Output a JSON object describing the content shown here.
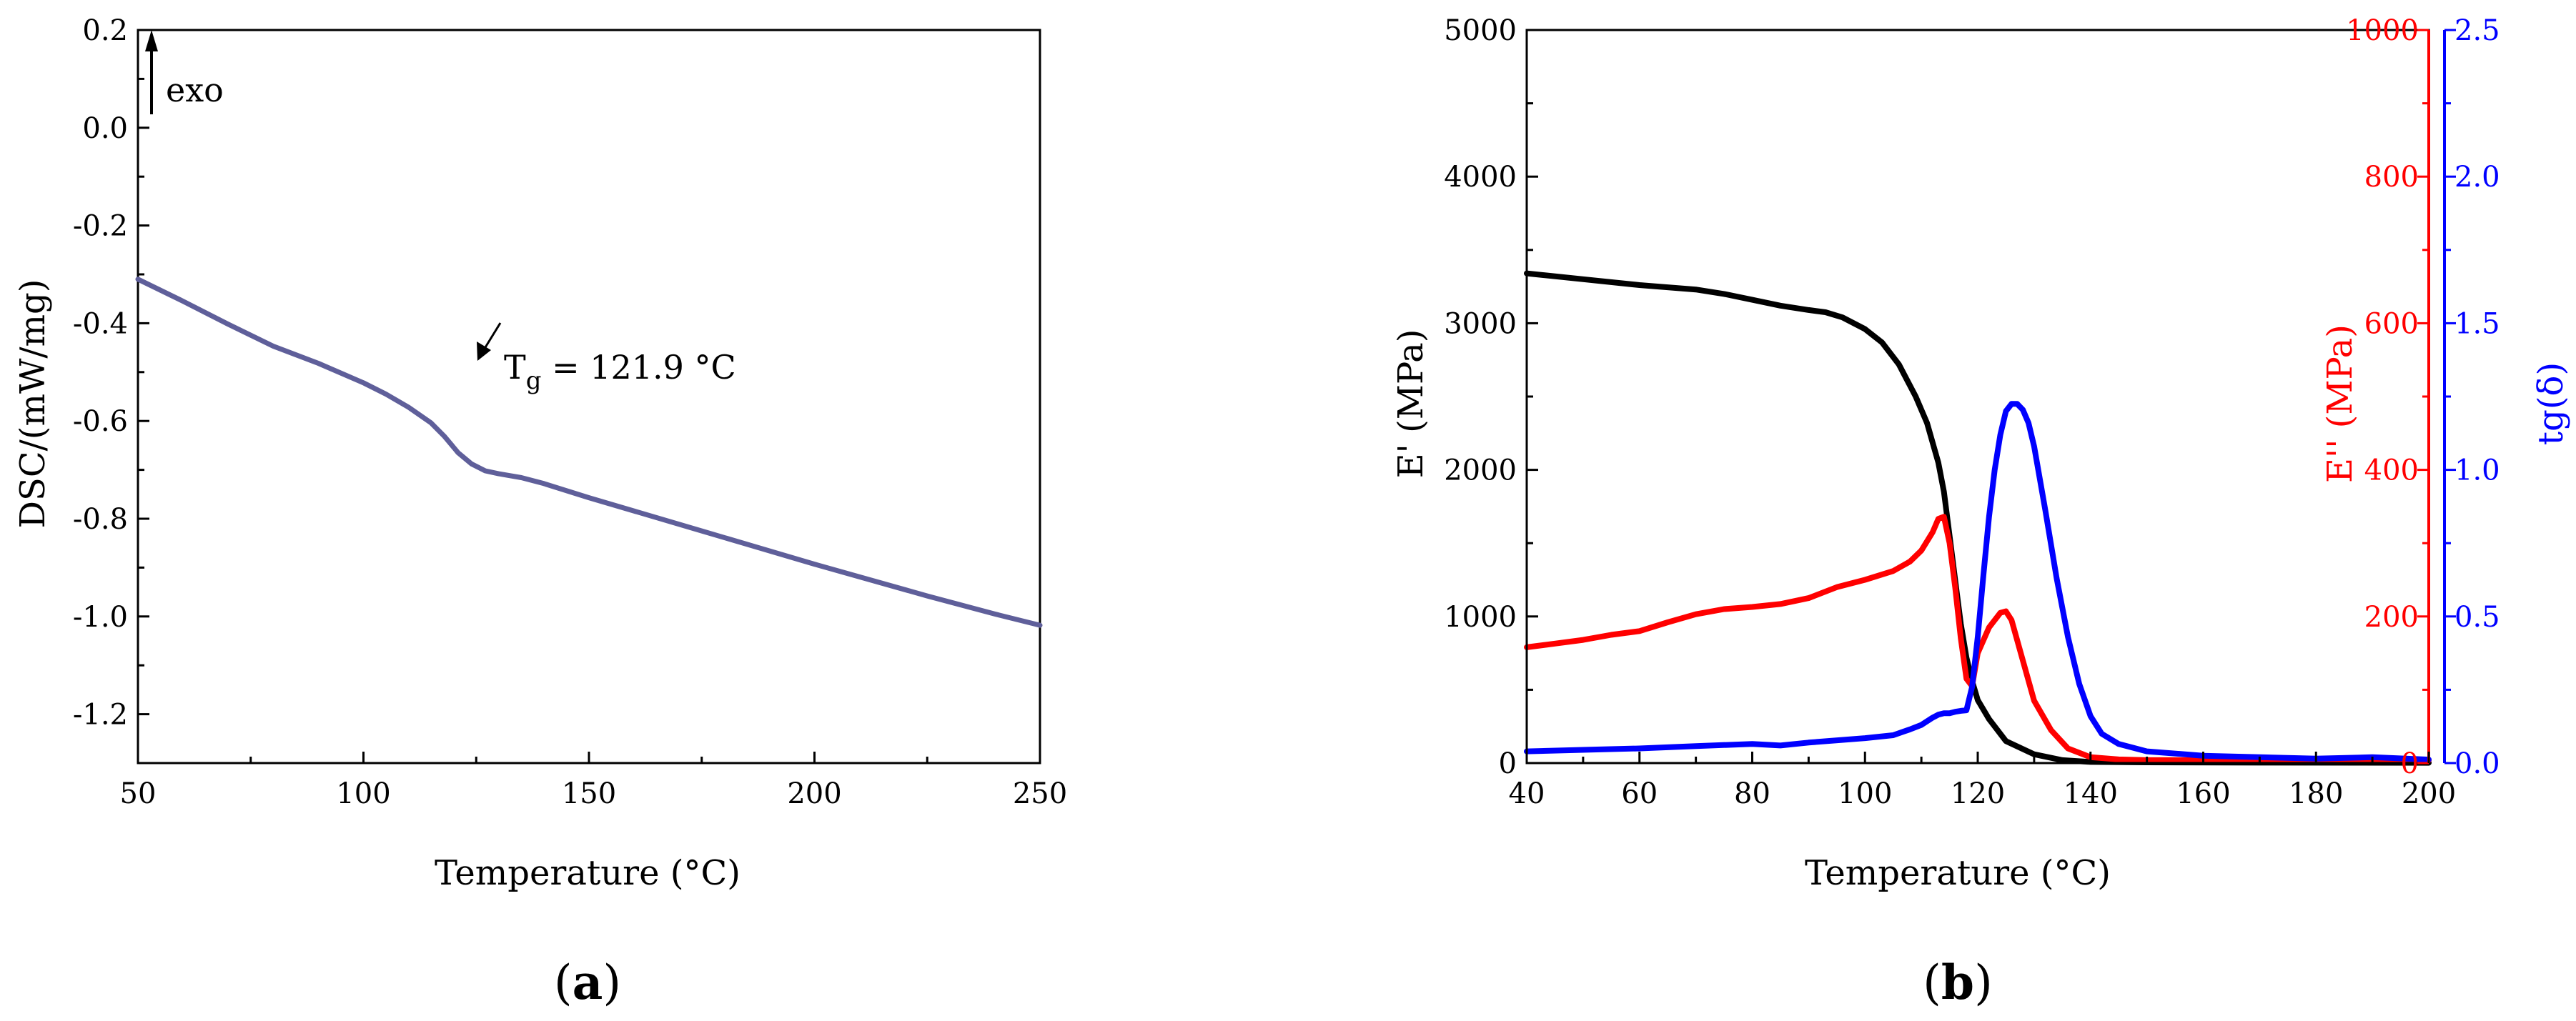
{
  "chart_data": [
    {
      "panel": "(a)",
      "panel_letter": "a",
      "type": "line",
      "xlabel": "Temperature (°C)",
      "ylabel": "DSC/(mW/mg)",
      "xlim": [
        50,
        250
      ],
      "ylim": [
        -1.3,
        0.2
      ],
      "xticks": [
        50,
        100,
        150,
        200,
        250
      ],
      "xtick_labels": [
        "50",
        "100",
        "150",
        "200",
        "250"
      ],
      "yticks": [
        0.2,
        0.0,
        -0.2,
        -0.4,
        -0.6,
        -0.8,
        -1.0,
        -1.2
      ],
      "ytick_labels": [
        "0.2",
        "0.0",
        "-0.2",
        "-0.4",
        "-0.6",
        "-0.8",
        "-1.0",
        "-1.2"
      ],
      "annotations": {
        "exo": "exo",
        "tg_prefix": "T",
        "tg_sub": "g",
        "tg_text": " = 121.9 °C"
      },
      "series": [
        {
          "name": "DSC",
          "color": "#5f5f9a",
          "x": [
            50,
            60,
            70,
            80,
            90,
            100,
            105,
            110,
            115,
            118,
            121,
            124,
            127,
            130,
            135,
            140,
            150,
            175,
            200,
            225,
            240,
            250
          ],
          "y": [
            -0.31,
            -0.355,
            -0.402,
            -0.447,
            -0.482,
            -0.522,
            -0.545,
            -0.572,
            -0.604,
            -0.632,
            -0.665,
            -0.688,
            -0.702,
            -0.708,
            -0.716,
            -0.728,
            -0.757,
            -0.825,
            -0.893,
            -0.958,
            -0.995,
            -1.018
          ]
        }
      ]
    },
    {
      "panel": "(b)",
      "panel_letter": "b",
      "type": "line",
      "xlabel": "Temperature (°C)",
      "xlim": [
        40,
        200
      ],
      "xticks": [
        40,
        60,
        80,
        100,
        120,
        140,
        160,
        180,
        200
      ],
      "xtick_labels": [
        "40",
        "60",
        "80",
        "100",
        "120",
        "140",
        "160",
        "180",
        "200"
      ],
      "axes": {
        "left": {
          "label": "E' (MPa)",
          "ylim": [
            0,
            5000
          ],
          "ticks": [
            0,
            1000,
            2000,
            3000,
            4000,
            5000
          ],
          "tick_labels": [
            "0",
            "1000",
            "2000",
            "3000",
            "4000",
            "5000"
          ],
          "color": "#000000"
        },
        "right1": {
          "label": "E'' (MPa)",
          "ylim": [
            0,
            1000
          ],
          "ticks": [
            0,
            200,
            400,
            600,
            800,
            1000
          ],
          "tick_labels": [
            "0",
            "200",
            "400",
            "600",
            "800",
            "1000"
          ],
          "color": "#ff0000"
        },
        "right2": {
          "label": "tg(δ)",
          "ylim": [
            0,
            2.5
          ],
          "ticks": [
            0,
            0.5,
            1.0,
            1.5,
            2.0,
            2.5
          ],
          "tick_labels": [
            "0.0",
            "0.5",
            "1.0",
            "1.5",
            "2.0",
            "2.5"
          ],
          "color": "#0000ff"
        }
      },
      "series": [
        {
          "name": "E'",
          "axis": "left",
          "color": "#000000",
          "x": [
            40,
            50,
            60,
            70,
            75,
            80,
            85,
            90,
            93,
            96,
            100,
            103,
            106,
            109,
            111,
            113,
            114,
            115,
            116,
            117,
            118,
            119,
            120,
            122,
            125,
            130,
            135,
            140,
            150,
            170,
            200
          ],
          "y": [
            3340,
            3300,
            3260,
            3230,
            3200,
            3160,
            3120,
            3090,
            3075,
            3040,
            2960,
            2870,
            2720,
            2500,
            2320,
            2050,
            1850,
            1550,
            1250,
            950,
            720,
            560,
            430,
            300,
            150,
            60,
            20,
            8,
            5,
            3,
            2
          ]
        },
        {
          "name": "E''",
          "axis": "right1",
          "color": "#ff0000",
          "x": [
            40,
            45,
            50,
            55,
            60,
            65,
            70,
            75,
            80,
            85,
            90,
            95,
            100,
            105,
            108,
            110,
            112,
            113,
            114,
            115,
            116,
            117,
            118,
            119,
            120,
            122,
            124,
            125,
            126,
            128,
            130,
            133,
            136,
            140,
            145,
            150,
            160,
            175,
            200
          ],
          "y": [
            158,
            163,
            168,
            175,
            180,
            192,
            203,
            210,
            213,
            217,
            225,
            240,
            250,
            262,
            275,
            290,
            315,
            333,
            336,
            300,
            240,
            170,
            115,
            105,
            150,
            185,
            205,
            207,
            195,
            140,
            85,
            45,
            20,
            8,
            5,
            4,
            4,
            4,
            4
          ]
        },
        {
          "name": "tg(δ)",
          "axis": "right2",
          "color": "#0000ff",
          "x": [
            40,
            50,
            60,
            70,
            80,
            85,
            90,
            100,
            105,
            108,
            110,
            112,
            113,
            114,
            115,
            116,
            117,
            118,
            119,
            120,
            121,
            122,
            123,
            124,
            125,
            126,
            127,
            128,
            129,
            130,
            132,
            134,
            136,
            138,
            140,
            142,
            145,
            150,
            160,
            170,
            180,
            190,
            200
          ],
          "y": [
            0.04,
            0.045,
            0.05,
            0.058,
            0.065,
            0.06,
            0.07,
            0.085,
            0.095,
            0.115,
            0.13,
            0.155,
            0.165,
            0.17,
            0.17,
            0.175,
            0.178,
            0.18,
            0.26,
            0.43,
            0.64,
            0.84,
            1.0,
            1.12,
            1.2,
            1.225,
            1.225,
            1.205,
            1.16,
            1.08,
            0.86,
            0.63,
            0.43,
            0.27,
            0.16,
            0.1,
            0.065,
            0.04,
            0.025,
            0.02,
            0.015,
            0.02,
            0.012
          ]
        }
      ]
    }
  ]
}
